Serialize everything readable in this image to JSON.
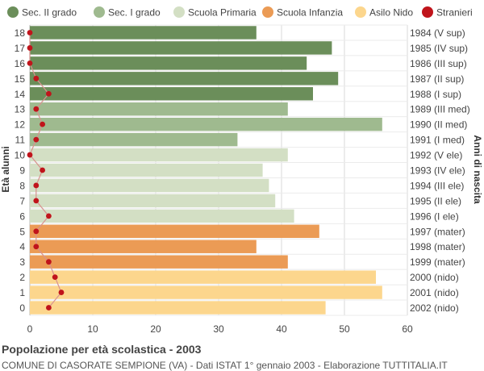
{
  "chart_data": {
    "type": "bar",
    "orientation": "horizontal",
    "title": "Popolazione per età scolastica - 2003",
    "subtitle": "COMUNE DI CASORATE SEMPIONE (VA) - Dati ISTAT 1° gennaio 2003 - Elaborazione TUTTITALIA.IT",
    "ylabel_left": "Età alunni",
    "ylabel_right": "Anni di nascita",
    "xlim": [
      0,
      60
    ],
    "xticks": [
      0,
      10,
      20,
      30,
      40,
      50,
      60
    ],
    "grid": true,
    "legend_position": "top",
    "legend": [
      {
        "name": "Sec. II grado",
        "color": "#6b8e5a"
      },
      {
        "name": "Sec. I grado",
        "color": "#9fba8f"
      },
      {
        "name": "Scuola Primaria",
        "color": "#d3dfc4"
      },
      {
        "name": "Scuola Infanzia",
        "color": "#eb9b55"
      },
      {
        "name": "Asilo Nido",
        "color": "#fcd68d"
      },
      {
        "name": "Stranieri",
        "color": "#c0141b"
      }
    ],
    "rows": [
      {
        "age": "18",
        "year": "1984 (V sup)",
        "value": 36,
        "stranieri": 0,
        "group": 0
      },
      {
        "age": "17",
        "year": "1985 (IV sup)",
        "value": 48,
        "stranieri": 0,
        "group": 0
      },
      {
        "age": "16",
        "year": "1986 (III sup)",
        "value": 44,
        "stranieri": 0,
        "group": 0
      },
      {
        "age": "15",
        "year": "1987 (II sup)",
        "value": 49,
        "stranieri": 1,
        "group": 0
      },
      {
        "age": "14",
        "year": "1988 (I sup)",
        "value": 45,
        "stranieri": 3,
        "group": 0
      },
      {
        "age": "13",
        "year": "1989 (III med)",
        "value": 41,
        "stranieri": 1,
        "group": 1
      },
      {
        "age": "12",
        "year": "1990 (II med)",
        "value": 56,
        "stranieri": 2,
        "group": 1
      },
      {
        "age": "11",
        "year": "1991 (I med)",
        "value": 33,
        "stranieri": 1,
        "group": 1
      },
      {
        "age": "10",
        "year": "1992 (V ele)",
        "value": 41,
        "stranieri": 0,
        "group": 2
      },
      {
        "age": "9",
        "year": "1993 (IV ele)",
        "value": 37,
        "stranieri": 2,
        "group": 2
      },
      {
        "age": "8",
        "year": "1994 (III ele)",
        "value": 38,
        "stranieri": 1,
        "group": 2
      },
      {
        "age": "7",
        "year": "1995 (II ele)",
        "value": 39,
        "stranieri": 1,
        "group": 2
      },
      {
        "age": "6",
        "year": "1996 (I ele)",
        "value": 42,
        "stranieri": 3,
        "group": 2
      },
      {
        "age": "5",
        "year": "1997 (mater)",
        "value": 46,
        "stranieri": 1,
        "group": 3
      },
      {
        "age": "4",
        "year": "1998 (mater)",
        "value": 36,
        "stranieri": 1,
        "group": 3
      },
      {
        "age": "3",
        "year": "1999 (mater)",
        "value": 41,
        "stranieri": 3,
        "group": 3
      },
      {
        "age": "2",
        "year": "2000 (nido)",
        "value": 55,
        "stranieri": 4,
        "group": 4
      },
      {
        "age": "1",
        "year": "2001 (nido)",
        "value": 56,
        "stranieri": 5,
        "group": 4
      },
      {
        "age": "0",
        "year": "2002 (nido)",
        "value": 47,
        "stranieri": 3,
        "group": 4
      }
    ]
  }
}
